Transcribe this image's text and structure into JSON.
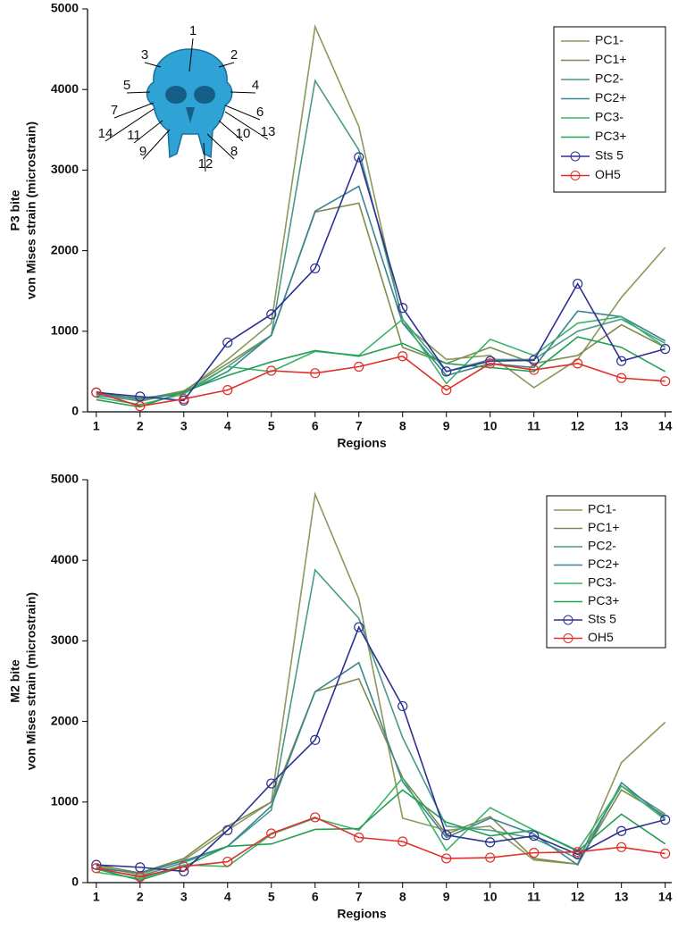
{
  "chart_data": [
    {
      "type": "line",
      "ylabel": [
        "P3 bite",
        "von Mises strain (microstrain)"
      ],
      "xlabel": "Regions",
      "x": [
        1,
        2,
        3,
        4,
        5,
        6,
        7,
        8,
        9,
        10,
        11,
        12,
        13,
        14
      ],
      "xlim": [
        0.8,
        14.15
      ],
      "xticks": [
        1,
        2,
        3,
        4,
        5,
        6,
        7,
        8,
        9,
        10,
        11,
        12,
        13,
        14
      ],
      "ylim": [
        0,
        5000
      ],
      "yticks": [
        0,
        1000,
        2000,
        3000,
        4000,
        5000
      ],
      "legend": "upper right",
      "annotations": [
        "1",
        "2",
        "3",
        "4",
        "5",
        "6",
        "7",
        "8",
        "9",
        "10",
        "11",
        "12",
        "13",
        "14"
      ],
      "series": [
        {
          "name": "PC1-",
          "color": "#8a9a5b",
          "values": [
            230,
            130,
            250,
            650,
            1100,
            4780,
            3540,
            1100,
            650,
            700,
            300,
            650,
            1420,
            2040
          ]
        },
        {
          "name": "PC1+",
          "color": "#7d8c4c",
          "values": [
            250,
            150,
            260,
            600,
            950,
            2480,
            2590,
            800,
            600,
            800,
            600,
            700,
            1080,
            800
          ]
        },
        {
          "name": "PC2-",
          "color": "#4a9a8a",
          "values": [
            200,
            140,
            240,
            560,
            950,
            4110,
            3250,
            1150,
            500,
            650,
            650,
            1000,
            1150,
            850
          ]
        },
        {
          "name": "PC2+",
          "color": "#3a8590",
          "values": [
            220,
            170,
            230,
            500,
            950,
            2490,
            2800,
            1100,
            450,
            600,
            550,
            1250,
            1180,
            880
          ]
        },
        {
          "name": "PC3-",
          "color": "#3db36a",
          "values": [
            180,
            90,
            220,
            560,
            500,
            750,
            700,
            1150,
            350,
            900,
            700,
            1100,
            1180,
            800
          ]
        },
        {
          "name": "PC3+",
          "color": "#22a055",
          "values": [
            150,
            60,
            250,
            450,
            620,
            760,
            690,
            850,
            600,
            550,
            500,
            930,
            800,
            500
          ]
        },
        {
          "name": "Sts 5",
          "color": "#2e3192",
          "marker": "circle",
          "values": [
            240,
            190,
            140,
            860,
            1210,
            1780,
            3160,
            1290,
            500,
            630,
            640,
            1590,
            630,
            780
          ]
        },
        {
          "name": "OH5",
          "color": "#e0302a",
          "marker": "circle",
          "values": [
            240,
            70,
            160,
            270,
            510,
            480,
            560,
            690,
            270,
            600,
            520,
            600,
            420,
            380
          ]
        }
      ]
    },
    {
      "type": "line",
      "ylabel": [
        "M2 bite",
        "von Mises strain (microstrain)"
      ],
      "xlabel": "Regions",
      "x": [
        1,
        2,
        3,
        4,
        5,
        6,
        7,
        8,
        9,
        10,
        11,
        12,
        13,
        14
      ],
      "xlim": [
        0.8,
        14.15
      ],
      "xticks": [
        1,
        2,
        3,
        4,
        5,
        6,
        7,
        8,
        9,
        10,
        11,
        12,
        13,
        14
      ],
      "ylim": [
        0,
        5000
      ],
      "yticks": [
        0,
        1000,
        2000,
        3000,
        4000,
        5000
      ],
      "legend": "upper right",
      "series": [
        {
          "name": "PC1-",
          "color": "#8a9a5b",
          "values": [
            200,
            100,
            280,
            650,
            1000,
            4820,
            3520,
            800,
            650,
            700,
            280,
            230,
            1490,
            1990
          ]
        },
        {
          "name": "PC1+",
          "color": "#7d8c4c",
          "values": [
            220,
            120,
            300,
            700,
            1000,
            2370,
            2530,
            1300,
            600,
            820,
            300,
            230,
            1150,
            830
          ]
        },
        {
          "name": "PC2-",
          "color": "#4a9a8a",
          "values": [
            170,
            80,
            250,
            450,
            900,
            3880,
            3280,
            1800,
            700,
            650,
            550,
            300,
            1200,
            850
          ]
        },
        {
          "name": "PC2+",
          "color": "#3a8590",
          "values": [
            180,
            120,
            270,
            450,
            950,
            2370,
            2730,
            1250,
            560,
            800,
            600,
            220,
            1240,
            800
          ]
        },
        {
          "name": "PC3-",
          "color": "#3db36a",
          "values": [
            130,
            50,
            220,
            200,
            600,
            800,
            650,
            1300,
            400,
            930,
            650,
            400,
            1200,
            780
          ]
        },
        {
          "name": "PC3+",
          "color": "#22a055",
          "values": [
            170,
            30,
            200,
            450,
            480,
            660,
            670,
            1150,
            750,
            580,
            650,
            390,
            850,
            480
          ]
        },
        {
          "name": "Sts 5",
          "color": "#2e3192",
          "marker": "circle",
          "values": [
            220,
            190,
            140,
            650,
            1230,
            1770,
            3170,
            2190,
            590,
            500,
            580,
            350,
            640,
            780
          ]
        },
        {
          "name": "OH5",
          "color": "#e0302a",
          "marker": "circle",
          "values": [
            180,
            70,
            200,
            260,
            610,
            810,
            560,
            510,
            300,
            310,
            370,
            380,
            440,
            360
          ]
        }
      ]
    }
  ]
}
